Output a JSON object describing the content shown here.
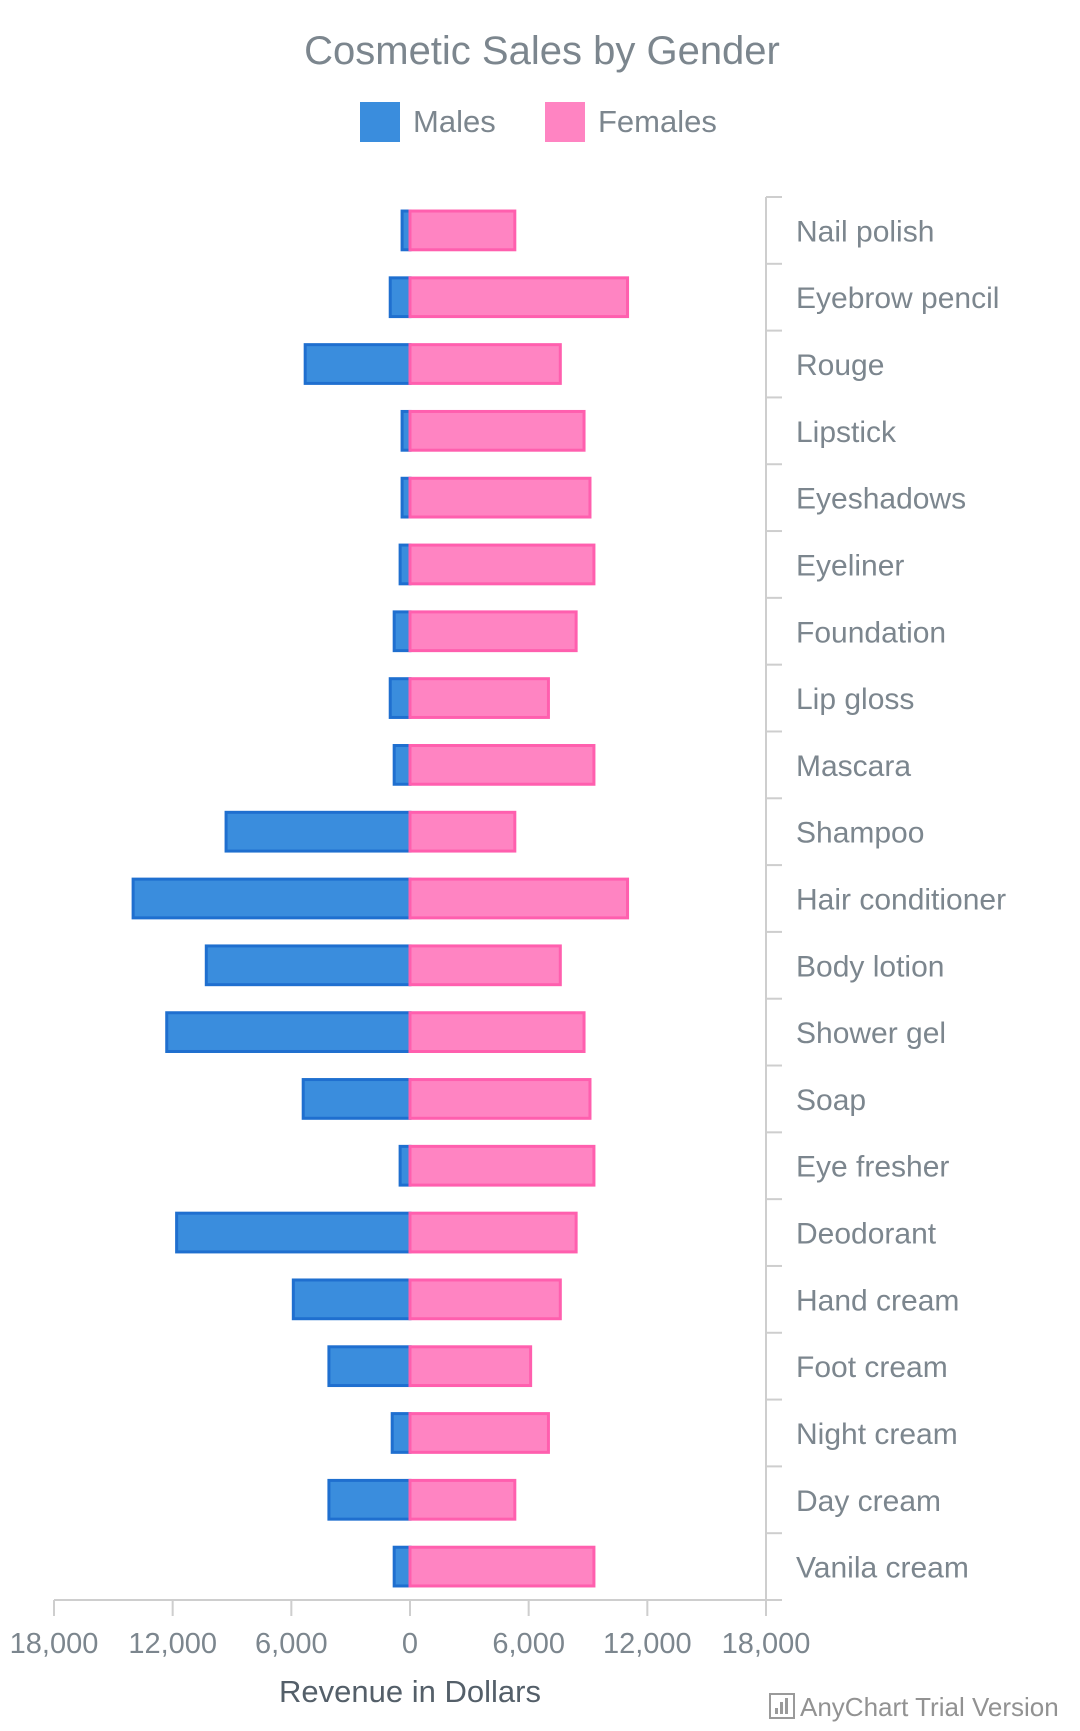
{
  "chart_data": {
    "type": "bar",
    "orientation": "horizontal",
    "title": "Cosmetic Sales by Gender",
    "categories": [
      "Nail polish",
      "Eyebrow pencil",
      "Rouge",
      "Lipstick",
      "Eyeshadows",
      "Eyeliner",
      "Foundation",
      "Lip gloss",
      "Mascara",
      "Shampoo",
      "Hair conditioner",
      "Body lotion",
      "Shower gel",
      "Soap",
      "Eye fresher",
      "Deodorant",
      "Hand cream",
      "Foot cream",
      "Night cream",
      "Day cream",
      "Vanila cream"
    ],
    "series": [
      {
        "name": "Males",
        "color": "#3a8ddd",
        "stroke": "#1f6fcf",
        "values": [
          400,
          1000,
          5300,
          400,
          400,
          500,
          800,
          1000,
          800,
          9300,
          14000,
          10300,
          12300,
          5400,
          500,
          11800,
          5900,
          4100,
          900,
          4100,
          800
        ]
      },
      {
        "name": "Females",
        "color": "#ff84c2",
        "stroke": "#ff5fae",
        "values": [
          5300,
          11000,
          7600,
          8800,
          9100,
          9300,
          8400,
          7000,
          9300,
          5300,
          11000,
          7600,
          8800,
          9100,
          9300,
          8400,
          7600,
          6100,
          7000,
          5300,
          9300
        ]
      }
    ],
    "xlabel": "Revenue in Dollars",
    "xlim": [
      -18000,
      18000
    ],
    "x_ticks": [
      "18,000",
      "12,000",
      "6,000",
      "0",
      "6,000",
      "12,000",
      "18,000"
    ],
    "legend_position": "top-center",
    "category_axis_position": "right",
    "grid": false
  },
  "credits": {
    "text": "AnyChart Trial Version",
    "icon": "bar-chart-icon"
  }
}
